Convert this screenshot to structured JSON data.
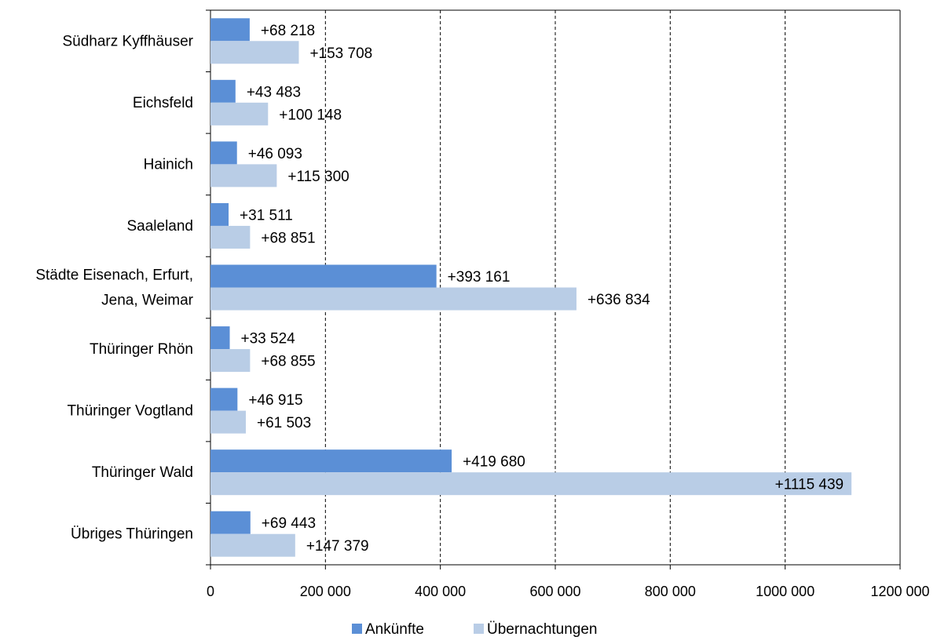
{
  "chart_data": {
    "type": "bar",
    "orientation": "horizontal",
    "categories": [
      [
        "Südharz Kyffhäuser"
      ],
      [
        "Eichsfeld"
      ],
      [
        "Hainich"
      ],
      [
        "Saaleland"
      ],
      [
        "Städte Eisenach, Erfurt,",
        "Jena, Weimar"
      ],
      [
        "Thüringer Rhön"
      ],
      [
        "Thüringer Vogtland"
      ],
      [
        "Thüringer Wald"
      ],
      [
        "Übriges Thüringen"
      ]
    ],
    "series": [
      {
        "name": "Ankünfte",
        "color": "#5b8fd6",
        "values": [
          68218,
          43483,
          46093,
          31511,
          393161,
          33524,
          46915,
          419680,
          69443
        ],
        "labels": [
          "+68 218",
          "+43 483",
          "+46 093",
          "+31 511",
          "+393 161",
          "+33 524",
          "+46 915",
          "+419 680",
          "+69 443"
        ]
      },
      {
        "name": "Übernachtungen",
        "color": "#b9cde6",
        "values": [
          153708,
          100148,
          115300,
          68851,
          636834,
          68855,
          61503,
          1115439,
          147379
        ],
        "labels": [
          "+153 708",
          "+100 148",
          "+115 300",
          "+68 851",
          "+636 834",
          "+68 855",
          "+61 503",
          "+1115 439",
          "+147 379"
        ]
      }
    ],
    "xlim": [
      0,
      1200000
    ],
    "xticks": [
      0,
      200000,
      400000,
      600000,
      800000,
      1000000,
      1200000
    ],
    "xtick_labels": [
      "0",
      "200 000",
      "400 000",
      "600 000",
      "800 000",
      "1000 000",
      "1200 000"
    ],
    "grid": "vertical dashed",
    "legend_position": "bottom"
  }
}
